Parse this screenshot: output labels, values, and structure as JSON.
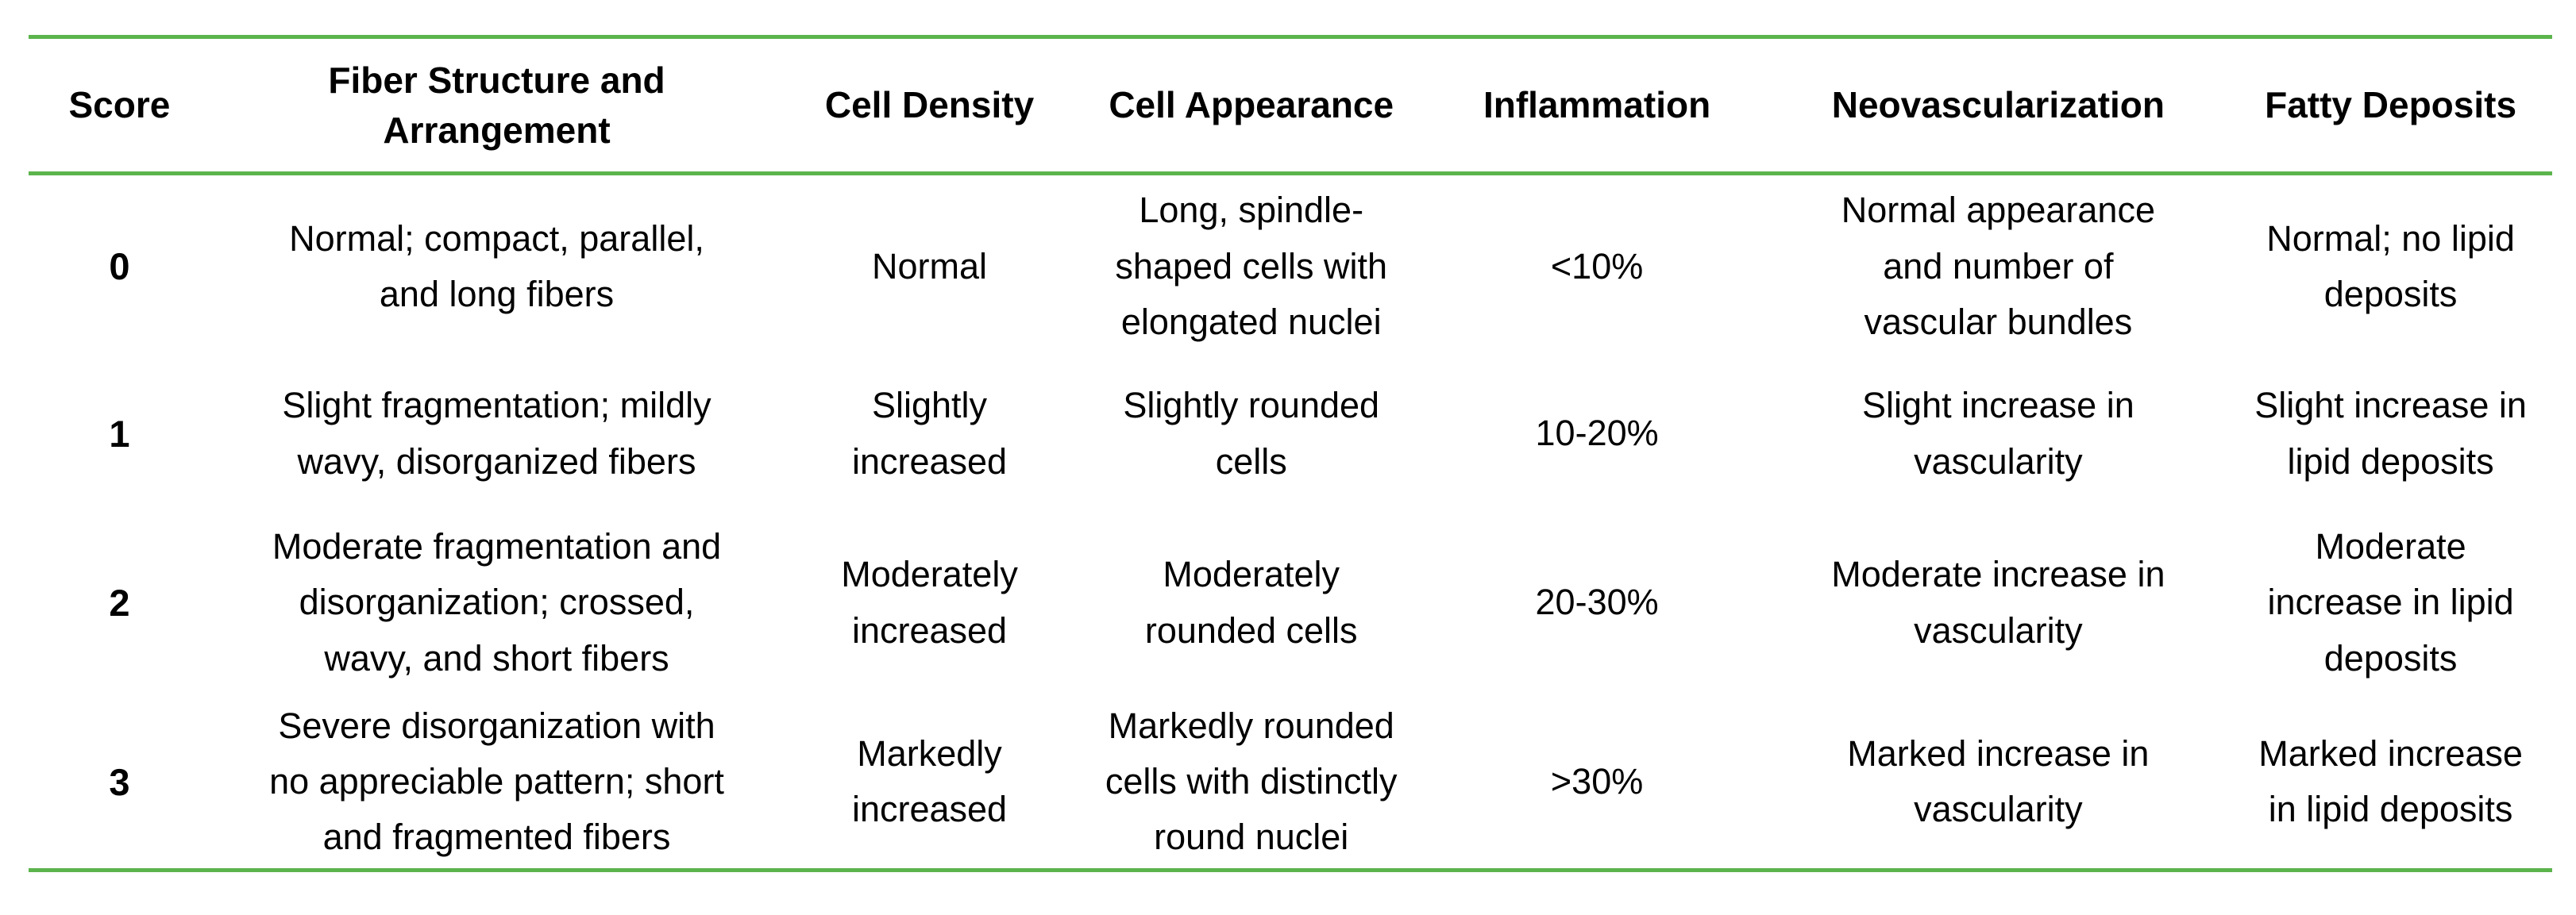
{
  "table": {
    "columns": [
      {
        "label": "Score"
      },
      {
        "label": "Fiber Structure and\nArrangement"
      },
      {
        "label": "Cell Density"
      },
      {
        "label": "Cell Appearance"
      },
      {
        "label": "Inflammation"
      },
      {
        "label": "Neovascularization"
      },
      {
        "label": "Fatty Deposits"
      }
    ],
    "rows": [
      {
        "score": "0",
        "fiber_structure": "Normal; compact, parallel,\nand long fibers",
        "cell_density": "Normal",
        "cell_appearance": "Long, spindle-\nshaped cells with\nelongated nuclei",
        "inflammation": "<10%",
        "neovascularization": "Normal appearance\nand number of\nvascular bundles",
        "fatty_deposits": "Normal; no lipid\ndeposits"
      },
      {
        "score": "1",
        "fiber_structure": "Slight fragmentation; mildly\nwavy, disorganized fibers",
        "cell_density": "Slightly\nincreased",
        "cell_appearance": "Slightly rounded\ncells",
        "inflammation": "10-20%",
        "neovascularization": "Slight increase in\nvascularity",
        "fatty_deposits": "Slight increase in\nlipid deposits"
      },
      {
        "score": "2",
        "fiber_structure": "Moderate fragmentation and\ndisorganization; crossed,\nwavy, and short fibers",
        "cell_density": "Moderately\nincreased",
        "cell_appearance": "Moderately\nrounded cells",
        "inflammation": "20-30%",
        "neovascularization": "Moderate increase in\nvascularity",
        "fatty_deposits": "Moderate\nincrease in lipid\ndeposits"
      },
      {
        "score": "3",
        "fiber_structure": "Severe disorganization with\nno appreciable pattern; short\nand fragmented fibers",
        "cell_density": "Markedly\nincreased",
        "cell_appearance": "Markedly rounded\ncells with distinctly\nround nuclei",
        "inflammation": ">30%",
        "neovascularization": "Marked increase in\nvascularity",
        "fatty_deposits": "Marked increase\nin lipid deposits"
      }
    ]
  },
  "colors": {
    "rule_green": "#5cb44c",
    "text": "#000000",
    "background": "#ffffff"
  }
}
